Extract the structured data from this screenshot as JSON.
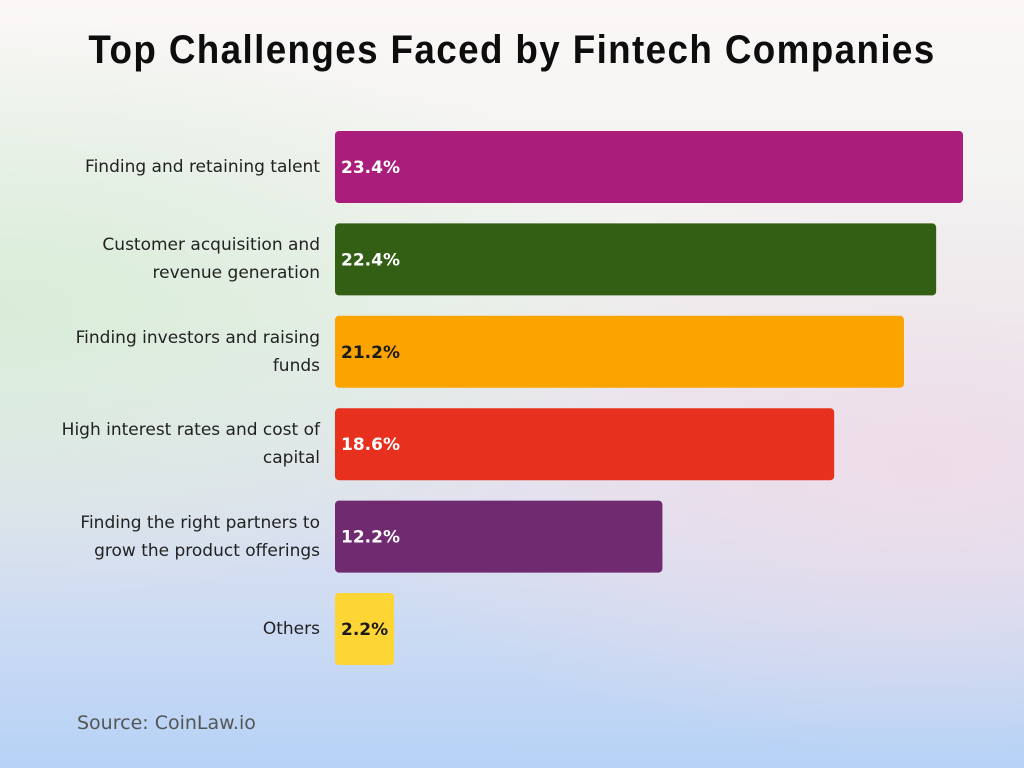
{
  "chart_data": {
    "type": "hbar",
    "title": "Top Challenges Faced by Fintech Companies",
    "categories": [
      "Finding and retaining talent",
      "Customer acquisition and revenue generation",
      "Finding investors and raising funds",
      "High interest rates and cost of capital",
      "Finding the right partners to grow the product offerings",
      "Others"
    ],
    "values": [
      23.4,
      22.4,
      21.2,
      18.6,
      12.2,
      2.2
    ],
    "value_labels": [
      "23.4%",
      "22.4%",
      "21.2%",
      "18.6%",
      "12.2%",
      "2.2%"
    ],
    "colors": [
      "#ab1d7a",
      "#335f14",
      "#fba400",
      "#e8301f",
      "#6f2a70",
      "#fdd535"
    ],
    "source": "Source: CoinLaw.io"
  }
}
